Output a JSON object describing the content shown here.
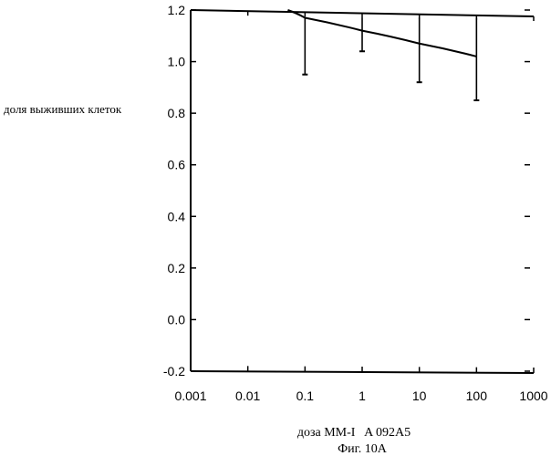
{
  "chart_data": {
    "type": "line",
    "title": "",
    "ylabel": "доля выживших клеток",
    "xlabel": "доза MM-I   A 092A5",
    "caption": "Фиг. 10А",
    "x_scale": "log",
    "xlim": [
      0.001,
      1000
    ],
    "ylim": [
      -0.2,
      1.2
    ],
    "x_ticks": [
      0.001,
      0.01,
      0.1,
      1,
      10,
      100,
      1000
    ],
    "x_tick_labels": [
      "0.001",
      "0.01",
      "0.1",
      "1",
      "10",
      "100",
      "1000"
    ],
    "y_ticks": [
      -0.2,
      0.0,
      0.2,
      0.4,
      0.6,
      0.8,
      1.0,
      1.2
    ],
    "y_tick_labels": [
      "-0.2",
      "0.0",
      "0.2",
      "0.4",
      "0.6",
      "0.8",
      "1.0",
      "1.2"
    ],
    "grid": false,
    "series": [
      {
        "name": "",
        "points": [
          {
            "x": 0.05,
            "y": 1.2
          },
          {
            "x": 0.1,
            "y": 1.17
          },
          {
            "x": 1,
            "y": 1.12
          },
          {
            "x": 10,
            "y": 1.07
          },
          {
            "x": 100,
            "y": 1.02
          }
        ],
        "error_bars": [
          {
            "x": 0.1,
            "lower": 0.95,
            "upper": 1.17
          },
          {
            "x": 1,
            "lower": 1.04,
            "upper": 1.17
          },
          {
            "x": 10,
            "lower": 0.92,
            "upper": 1.17
          },
          {
            "x": 100,
            "lower": 0.85,
            "upper": 1.17
          }
        ]
      }
    ]
  }
}
